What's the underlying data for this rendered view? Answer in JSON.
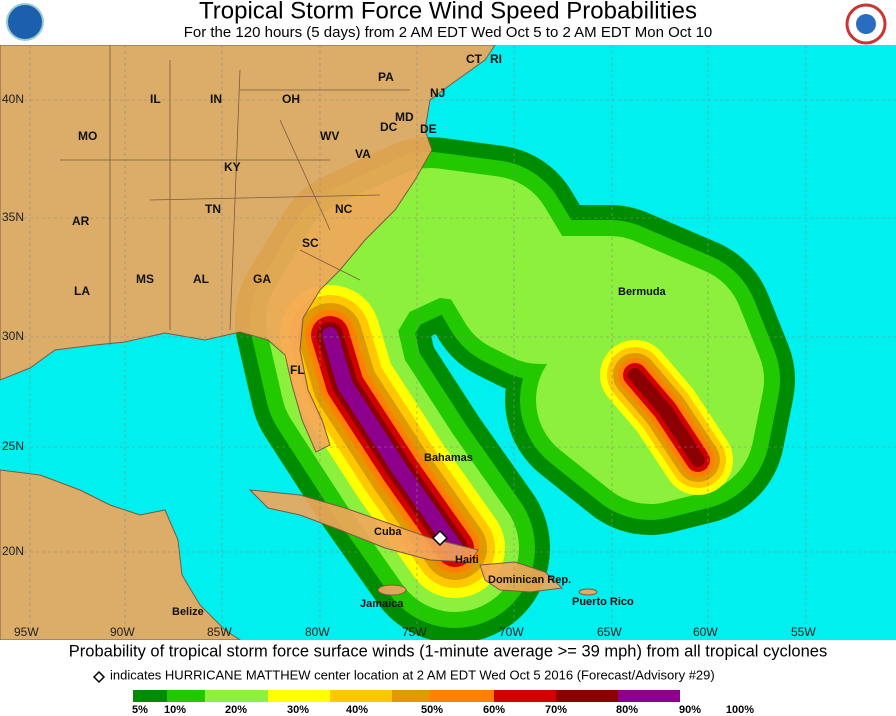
{
  "header": {
    "title": "Tropical Storm Force Wind Speed Probabilities",
    "subtitle": "For the 120 hours (5 days) from 2 AM EDT Wed Oct 5 to 2 AM EDT Mon Oct 10"
  },
  "map": {
    "regions": [
      "PA",
      "IL",
      "IN",
      "OH",
      "NJ",
      "MO",
      "WV",
      "MD",
      "DE",
      "DC",
      "VA",
      "KY",
      "AR",
      "TN",
      "NC",
      "SC",
      "MS",
      "AL",
      "GA",
      "LA",
      "FL",
      "Bermuda",
      "Bahamas",
      "Cuba",
      "Haiti",
      "Dominican Rep.",
      "Jamaica",
      "Puerto Rico",
      "Belize",
      "CT",
      "RI"
    ],
    "lat_labels": [
      "40N",
      "35N",
      "30N",
      "25N",
      "20N"
    ],
    "lon_labels": [
      "95W",
      "90W",
      "85W",
      "80W",
      "75W",
      "70W",
      "65W",
      "60W",
      "55W"
    ]
  },
  "footer": {
    "caption": "Probability of tropical storm force surface winds (1-minute average >= 39 mph) from all tropical cyclones",
    "note": "indicates HURRICANE MATTHEW center location at 2 AM EDT Wed Oct 5 2016 (Forecast/Advisory #29)"
  },
  "legend": {
    "labels": [
      "5%",
      "10%",
      "20%",
      "30%",
      "40%",
      "50%",
      "60%",
      "70%",
      "80%",
      "90%",
      "100%"
    ]
  }
}
